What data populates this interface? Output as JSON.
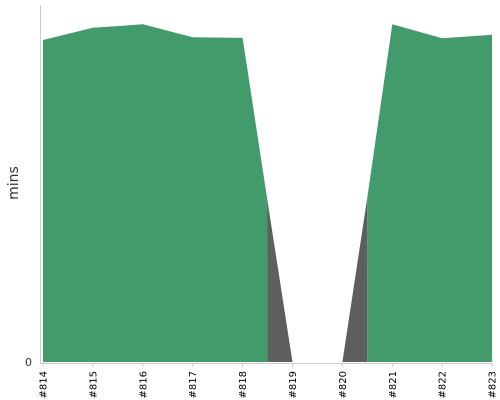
{
  "chart_data": {
    "type": "area",
    "categories": [
      "#814",
      "#815",
      "#816",
      "#817",
      "#818",
      "#819",
      "#820",
      "#821",
      "#822",
      "#823"
    ],
    "ylabel": "mins",
    "xlabel": "",
    "y_tick_labels": [
      "0"
    ],
    "ylim": [
      0,
      100
    ],
    "grid": false,
    "legend": "none",
    "segments": [
      {
        "status": "passed",
        "color": "#439b6c",
        "values": [
          {
            "x": "#814",
            "y": 92
          },
          {
            "x": "#815",
            "y": 95.5
          },
          {
            "x": "#816",
            "y": 96.5
          },
          {
            "x": "#817",
            "y": 92.8
          },
          {
            "x": "#818",
            "y": 92.6
          },
          {
            "x": "#818.5",
            "y": 46
          }
        ]
      },
      {
        "status": "failed",
        "color": "#5e5e5e",
        "values": [
          {
            "x": "#818.5",
            "y": 46
          },
          {
            "x": "#819",
            "y": 0
          }
        ]
      },
      {
        "status": "failed",
        "color": "#5e5e5e",
        "values": [
          {
            "x": "#820",
            "y": 0
          },
          {
            "x": "#820.5",
            "y": 47
          }
        ]
      },
      {
        "status": "passed",
        "color": "#439b6c",
        "values": [
          {
            "x": "#820.5",
            "y": 47
          },
          {
            "x": "#821",
            "y": 96.5
          },
          {
            "x": "#822",
            "y": 92.5
          },
          {
            "x": "#823",
            "y": 93.5
          }
        ]
      }
    ]
  }
}
